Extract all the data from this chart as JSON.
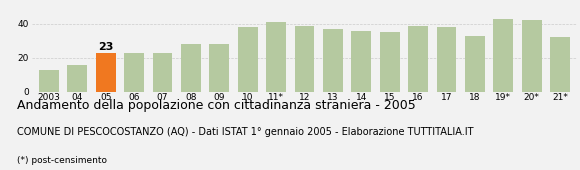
{
  "categories": [
    "2003",
    "04",
    "05",
    "06",
    "07",
    "08",
    "09",
    "10",
    "11*",
    "12",
    "13",
    "14",
    "15",
    "16",
    "17",
    "18",
    "19*",
    "20*",
    "21*"
  ],
  "values": [
    13,
    16,
    23,
    23,
    23,
    28,
    28,
    38,
    41,
    39,
    37,
    36,
    35,
    39,
    38,
    33,
    43,
    42,
    32
  ],
  "highlight_index": 2,
  "highlight_color": "#f07820",
  "bar_color": "#b5c9a0",
  "label_value": "23",
  "label_index": 2,
  "title": "Andamento della popolazione con cittadinanza straniera - 2005",
  "subtitle": "COMUNE DI PESCOCOSTANZO (AQ) - Dati ISTAT 1° gennaio 2005 - Elaborazione TUTTITALIA.IT",
  "footnote": "(*) post-censimento",
  "ylim": [
    0,
    50
  ],
  "yticks": [
    0,
    20,
    40
  ],
  "grid_color": "#cccccc",
  "background_color": "#f2f2f2",
  "title_fontsize": 9.0,
  "subtitle_fontsize": 7.0,
  "footnote_fontsize": 6.5,
  "tick_fontsize": 6.5,
  "label_fontsize": 8.0
}
